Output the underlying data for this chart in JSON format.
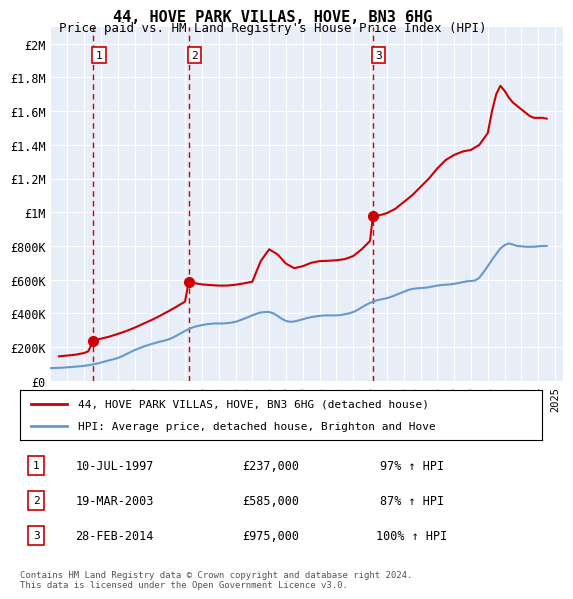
{
  "title": "44, HOVE PARK VILLAS, HOVE, BN3 6HG",
  "subtitle": "Price paid vs. HM Land Registry's House Price Index (HPI)",
  "transactions": [
    {
      "num": 1,
      "date": "10-JUL-1997",
      "price": 237000,
      "x_year": 1997.53,
      "pct": "97%",
      "dir": "↑"
    },
    {
      "num": 2,
      "date": "19-MAR-2003",
      "price": 585000,
      "x_year": 2003.21,
      "pct": "87%",
      "dir": "↑"
    },
    {
      "num": 3,
      "date": "28-FEB-2014",
      "price": 975000,
      "x_year": 2014.16,
      "pct": "100%",
      "dir": "↑"
    }
  ],
  "hpi_line_color": "#6699cc",
  "price_line_color": "#cc0000",
  "dot_color": "#cc0000",
  "vline_color": "#cc0000",
  "background_chart": "#e8eef8",
  "background_fig": "#ffffff",
  "ylim": [
    0,
    2100000
  ],
  "xlim_start": 1995.0,
  "xlim_end": 2025.5,
  "yticks": [
    0,
    200000,
    400000,
    600000,
    800000,
    1000000,
    1200000,
    1400000,
    1600000,
    1800000,
    2000000
  ],
  "ytick_labels": [
    "£0",
    "£200K",
    "£400K",
    "£600K",
    "£800K",
    "£1M",
    "£1.2M",
    "£1.4M",
    "£1.6M",
    "£1.8M",
    "£2M"
  ],
  "xtick_years": [
    1995,
    1996,
    1997,
    1998,
    1999,
    2000,
    2001,
    2002,
    2003,
    2004,
    2005,
    2006,
    2007,
    2008,
    2009,
    2010,
    2011,
    2012,
    2013,
    2014,
    2015,
    2016,
    2017,
    2018,
    2019,
    2020,
    2021,
    2022,
    2023,
    2024,
    2025
  ],
  "legend_property_label": "44, HOVE PARK VILLAS, HOVE, BN3 6HG (detached house)",
  "legend_hpi_label": "HPI: Average price, detached house, Brighton and Hove",
  "footer": "Contains HM Land Registry data © Crown copyright and database right 2024.\nThis data is licensed under the Open Government Licence v3.0.",
  "hpi_data_x": [
    1995.0,
    1995.25,
    1995.5,
    1995.75,
    1996.0,
    1996.25,
    1996.5,
    1996.75,
    1997.0,
    1997.25,
    1997.5,
    1997.75,
    1998.0,
    1998.25,
    1998.5,
    1998.75,
    1999.0,
    1999.25,
    1999.5,
    1999.75,
    2000.0,
    2000.25,
    2000.5,
    2000.75,
    2001.0,
    2001.25,
    2001.5,
    2001.75,
    2002.0,
    2002.25,
    2002.5,
    2002.75,
    2003.0,
    2003.25,
    2003.5,
    2003.75,
    2004.0,
    2004.25,
    2004.5,
    2004.75,
    2005.0,
    2005.25,
    2005.5,
    2005.75,
    2006.0,
    2006.25,
    2006.5,
    2006.75,
    2007.0,
    2007.25,
    2007.5,
    2007.75,
    2008.0,
    2008.25,
    2008.5,
    2008.75,
    2009.0,
    2009.25,
    2009.5,
    2009.75,
    2010.0,
    2010.25,
    2010.5,
    2010.75,
    2011.0,
    2011.25,
    2011.5,
    2011.75,
    2012.0,
    2012.25,
    2012.5,
    2012.75,
    2013.0,
    2013.25,
    2013.5,
    2013.75,
    2014.0,
    2014.25,
    2014.5,
    2014.75,
    2015.0,
    2015.25,
    2015.5,
    2015.75,
    2016.0,
    2016.25,
    2016.5,
    2016.75,
    2017.0,
    2017.25,
    2017.5,
    2017.75,
    2018.0,
    2018.25,
    2018.5,
    2018.75,
    2019.0,
    2019.25,
    2019.5,
    2019.75,
    2020.0,
    2020.25,
    2020.5,
    2020.75,
    2021.0,
    2021.25,
    2021.5,
    2021.75,
    2022.0,
    2022.25,
    2022.5,
    2022.75,
    2023.0,
    2023.25,
    2023.5,
    2023.75,
    2024.0,
    2024.25,
    2024.5
  ],
  "hpi_data_y": [
    75000,
    76000,
    77000,
    78000,
    80000,
    82000,
    84000,
    86000,
    89000,
    92000,
    97000,
    102000,
    108000,
    115000,
    122000,
    128000,
    135000,
    145000,
    158000,
    170000,
    182000,
    192000,
    202000,
    210000,
    218000,
    225000,
    232000,
    238000,
    245000,
    255000,
    268000,
    282000,
    296000,
    308000,
    318000,
    325000,
    330000,
    335000,
    338000,
    340000,
    340000,
    340000,
    342000,
    345000,
    350000,
    358000,
    368000,
    378000,
    388000,
    398000,
    405000,
    408000,
    408000,
    400000,
    385000,
    368000,
    355000,
    350000,
    352000,
    358000,
    365000,
    372000,
    378000,
    382000,
    385000,
    388000,
    388000,
    388000,
    388000,
    390000,
    395000,
    400000,
    408000,
    420000,
    435000,
    450000,
    462000,
    472000,
    480000,
    485000,
    490000,
    498000,
    508000,
    518000,
    528000,
    538000,
    545000,
    548000,
    550000,
    552000,
    555000,
    560000,
    565000,
    568000,
    570000,
    572000,
    575000,
    580000,
    585000,
    590000,
    592000,
    595000,
    612000,
    645000,
    680000,
    718000,
    752000,
    785000,
    805000,
    815000,
    808000,
    800000,
    798000,
    795000,
    795000,
    795000,
    798000,
    800000,
    800000
  ],
  "price_data_x": [
    1995.5,
    1996.0,
    1996.5,
    1997.0,
    1997.25,
    1997.53,
    1998.0,
    1998.5,
    1999.0,
    1999.5,
    2000.0,
    2000.5,
    2001.0,
    2001.5,
    2002.0,
    2002.5,
    2003.0,
    2003.21,
    2003.5,
    2004.0,
    2004.5,
    2005.0,
    2005.5,
    2006.0,
    2006.5,
    2007.0,
    2007.5,
    2008.0,
    2008.5,
    2009.0,
    2009.5,
    2010.0,
    2010.5,
    2011.0,
    2011.5,
    2012.0,
    2012.5,
    2013.0,
    2013.5,
    2014.0,
    2014.16,
    2014.5,
    2015.0,
    2015.5,
    2016.0,
    2016.5,
    2017.0,
    2017.5,
    2018.0,
    2018.5,
    2019.0,
    2019.5,
    2020.0,
    2020.5,
    2021.0,
    2021.25,
    2021.5,
    2021.75,
    2022.0,
    2022.25,
    2022.5,
    2022.75,
    2023.0,
    2023.25,
    2023.5,
    2023.75,
    2024.0,
    2024.25,
    2024.5
  ],
  "price_data_y": [
    145000,
    150000,
    155000,
    165000,
    175000,
    237000,
    250000,
    262000,
    278000,
    295000,
    315000,
    338000,
    360000,
    385000,
    412000,
    440000,
    470000,
    585000,
    580000,
    572000,
    568000,
    565000,
    565000,
    570000,
    578000,
    588000,
    710000,
    780000,
    750000,
    695000,
    668000,
    680000,
    700000,
    710000,
    712000,
    715000,
    722000,
    740000,
    780000,
    830000,
    975000,
    980000,
    995000,
    1020000,
    1060000,
    1100000,
    1150000,
    1200000,
    1260000,
    1310000,
    1340000,
    1360000,
    1370000,
    1400000,
    1470000,
    1600000,
    1700000,
    1750000,
    1720000,
    1680000,
    1650000,
    1630000,
    1610000,
    1590000,
    1570000,
    1560000,
    1560000,
    1560000,
    1555000
  ]
}
